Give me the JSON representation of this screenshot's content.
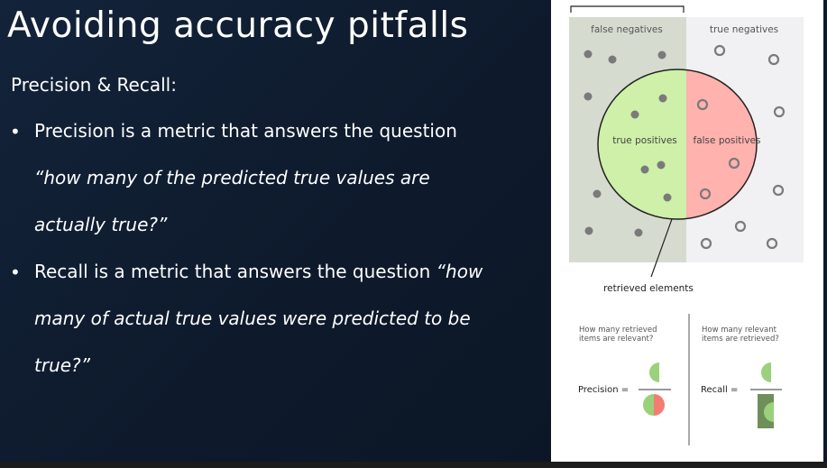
{
  "slide": {
    "title": "Avoiding accuracy pitfalls",
    "subtitle": "Precision & Recall:",
    "bullet_symbol": "•",
    "bullet1_line1": "Precision is a metric that answers the question",
    "bullet1_line2": "“how many of the predicted true values are",
    "bullet1_line3": "actually true?”",
    "bullet2_line1_text": "Recall is a metric that answers the question ",
    "bullet2_line1_italic": "“how",
    "bullet2_line2": "many of actual true values were predicted to be",
    "bullet2_line3": "true?”"
  },
  "figure": {
    "label_false_negatives": "false negatives",
    "label_true_negatives": "true negatives",
    "label_true_positives": "true positives",
    "label_false_positives": "false positives",
    "label_retrieved": "retrieved elements",
    "precision_question_line1": "How many retrieved",
    "precision_question_line2": "items are relevant?",
    "recall_question_line1": "How many relevant",
    "recall_question_line2": "items are retrieved?",
    "precision_label": "Precision =",
    "recall_label": "Recall ="
  },
  "colors": {
    "relevant_bg": "#d6dbd0",
    "irrelevant_bg": "#f1f0f2",
    "true_positive": "#cef0a8",
    "false_positive": "#ffb2ae",
    "green_mark": "#9ad17a",
    "red_mark": "#f37d73",
    "dark_green": "#6f8f5a"
  }
}
